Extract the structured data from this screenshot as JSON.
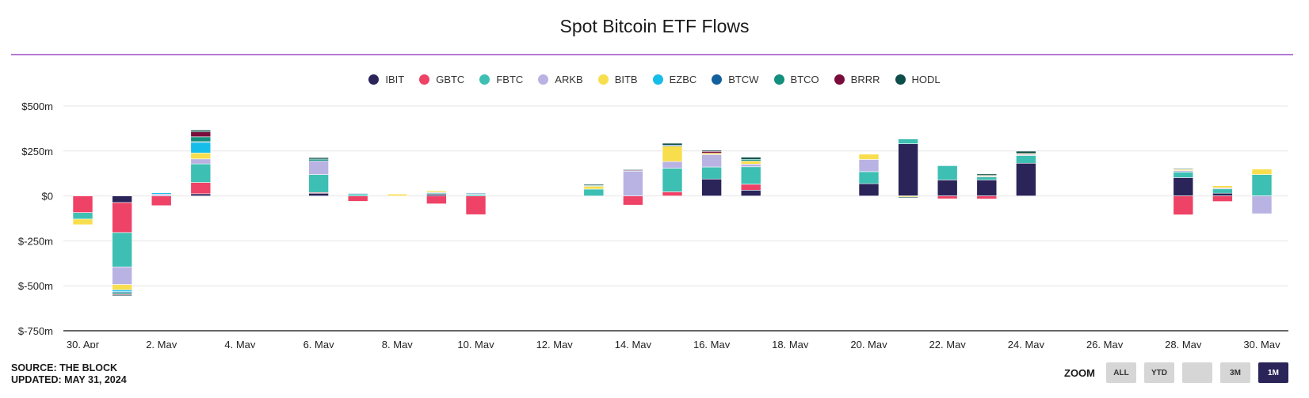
{
  "title": "Spot Bitcoin ETF Flows",
  "footer": {
    "source": "SOURCE: THE BLOCK",
    "updated": "UPDATED: MAY 31, 2024"
  },
  "zoom": {
    "label": "ZOOM",
    "buttons": [
      {
        "label": "ALL",
        "active": false
      },
      {
        "label": "YTD",
        "active": false
      },
      {
        "label": "",
        "active": false
      },
      {
        "label": "3M",
        "active": false
      },
      {
        "label": "1M",
        "active": true
      }
    ]
  },
  "chart_data": {
    "type": "bar",
    "stacked": true,
    "title": "Spot Bitcoin ETF Flows",
    "xlabel": "",
    "ylabel": "",
    "ylim": [
      -750,
      500
    ],
    "y_ticks": [
      500,
      250,
      0,
      -250,
      -500,
      -750
    ],
    "y_tick_labels": [
      "$500m",
      "$250m",
      "$0",
      "$-250m",
      "$-500m",
      "$-750m"
    ],
    "x_ticks": [
      {
        "label": "30. Apr",
        "day": 0
      },
      {
        "label": "2. May",
        "day": 2
      },
      {
        "label": "4. May",
        "day": 4
      },
      {
        "label": "6. May",
        "day": 6
      },
      {
        "label": "8. May",
        "day": 8
      },
      {
        "label": "10. May",
        "day": 10
      },
      {
        "label": "12. May",
        "day": 12
      },
      {
        "label": "14. May",
        "day": 14
      },
      {
        "label": "16. May",
        "day": 16
      },
      {
        "label": "18. May",
        "day": 18
      },
      {
        "label": "20. May",
        "day": 20
      },
      {
        "label": "22. May",
        "day": 22
      },
      {
        "label": "24. May",
        "day": 24
      },
      {
        "label": "26. May",
        "day": 26
      },
      {
        "label": "28. May",
        "day": 28
      },
      {
        "label": "30. May",
        "day": 30
      }
    ],
    "legend_position": "top-center",
    "grid": true,
    "series": [
      {
        "name": "IBIT",
        "color": "#2a2459"
      },
      {
        "name": "GBTC",
        "color": "#ee4266"
      },
      {
        "name": "FBTC",
        "color": "#3dbfb3"
      },
      {
        "name": "ARKB",
        "color": "#b9b3e3"
      },
      {
        "name": "BITB",
        "color": "#f8de4d"
      },
      {
        "name": "EZBC",
        "color": "#16bde8"
      },
      {
        "name": "BTCW",
        "color": "#14609c"
      },
      {
        "name": "BTCO",
        "color": "#138f7d"
      },
      {
        "name": "BRRR",
        "color": "#7a0c3b"
      },
      {
        "name": "HODL",
        "color": "#0d4d4a"
      }
    ],
    "days": [
      {
        "day": 0,
        "values": {
          "IBIT": 0,
          "GBTC": -93,
          "FBTC": -36,
          "ARKB": 0,
          "BITB": -31
        }
      },
      {
        "day": 1,
        "values": {
          "IBIT": -37,
          "GBTC": -167,
          "FBTC": -191,
          "ARKB": -98,
          "BITB": -30,
          "EZBC": -10,
          "BTCW": -5,
          "BTCO": -8,
          "BRRR": -5,
          "HODL": -5
        }
      },
      {
        "day": 2,
        "values": {
          "GBTC": -54,
          "ARKB": 10,
          "EZBC": 7
        }
      },
      {
        "day": 3,
        "values": {
          "IBIT": 12,
          "GBTC": 63,
          "FBTC": 103,
          "ARKB": 28,
          "BITB": 33,
          "EZBC": 60,
          "BTCW": 3,
          "BTCO": 27,
          "BRRR": 27,
          "HODL": 10
        }
      },
      {
        "day": 6,
        "values": {
          "IBIT": 15,
          "GBTC": 4,
          "FBTC": 100,
          "ARKB": 75,
          "BTCO": 11,
          "HODL": 8
        }
      },
      {
        "day": 7,
        "values": {
          "GBTC": -30,
          "FBTC": 12,
          "ARKB": 3
        }
      },
      {
        "day": 8,
        "values": {
          "BITB": 10
        }
      },
      {
        "day": 9,
        "values": {
          "IBIT": 10,
          "GBTC": -44,
          "FBTC": 6,
          "ARKB": 4,
          "BITB": 8
        }
      },
      {
        "day": 10,
        "values": {
          "GBTC": -104,
          "FBTC": 8,
          "ARKB": 4,
          "BTCW": 4
        }
      },
      {
        "day": 13,
        "values": {
          "FBTC": 38,
          "BITB": 16,
          "BTCO": 4,
          "HODL": 6
        }
      },
      {
        "day": 14,
        "values": {
          "GBTC": -51,
          "ARKB": 138,
          "BRRR": 5,
          "HODL": 3
        }
      },
      {
        "day": 15,
        "values": {
          "GBTC": 23,
          "FBTC": 131,
          "ARKB": 37,
          "BITB": 86,
          "BTCW": 6,
          "HODL": 10
        }
      },
      {
        "day": 16,
        "values": {
          "IBIT": 94,
          "FBTC": 67,
          "ARKB": 69,
          "BITB": 8,
          "BRRR": 10,
          "HODL": 6
        }
      },
      {
        "day": 17,
        "values": {
          "IBIT": 32,
          "GBTC": 33,
          "FBTC": 97,
          "ARKB": 15,
          "BITB": 17,
          "BTCO": 10,
          "HODL": 11
        }
      },
      {
        "day": 20,
        "values": {
          "IBIT": 68,
          "FBTC": 67,
          "ARKB": 68,
          "BITB": 29
        }
      },
      {
        "day": 21,
        "values": {
          "IBIT": 290,
          "FBTC": 27,
          "BITB": -6,
          "HODL": -5
        }
      },
      {
        "day": 22,
        "values": {
          "IBIT": 89,
          "GBTC": -16,
          "FBTC": 79
        }
      },
      {
        "day": 23,
        "values": {
          "IBIT": 89,
          "GBTC": -17,
          "FBTC": 17,
          "ARKB": 4,
          "BITB": 4,
          "HODL": 8
        }
      },
      {
        "day": 24,
        "values": {
          "IBIT": 182,
          "FBTC": 43,
          "ARKB": 6,
          "BITB": 5,
          "HODL": 13
        }
      },
      {
        "day": 28,
        "values": {
          "IBIT": 102,
          "GBTC": -105,
          "FBTC": 31,
          "ARKB": 8,
          "BITB": 6,
          "HODL": 4
        }
      },
      {
        "day": 29,
        "values": {
          "IBIT": 15,
          "GBTC": -31,
          "FBTC": 24,
          "ARKB": 6,
          "BITB": 12
        }
      },
      {
        "day": 30,
        "values": {
          "FBTC": 119,
          "ARKB": -99,
          "BITB": 30
        }
      }
    ]
  }
}
